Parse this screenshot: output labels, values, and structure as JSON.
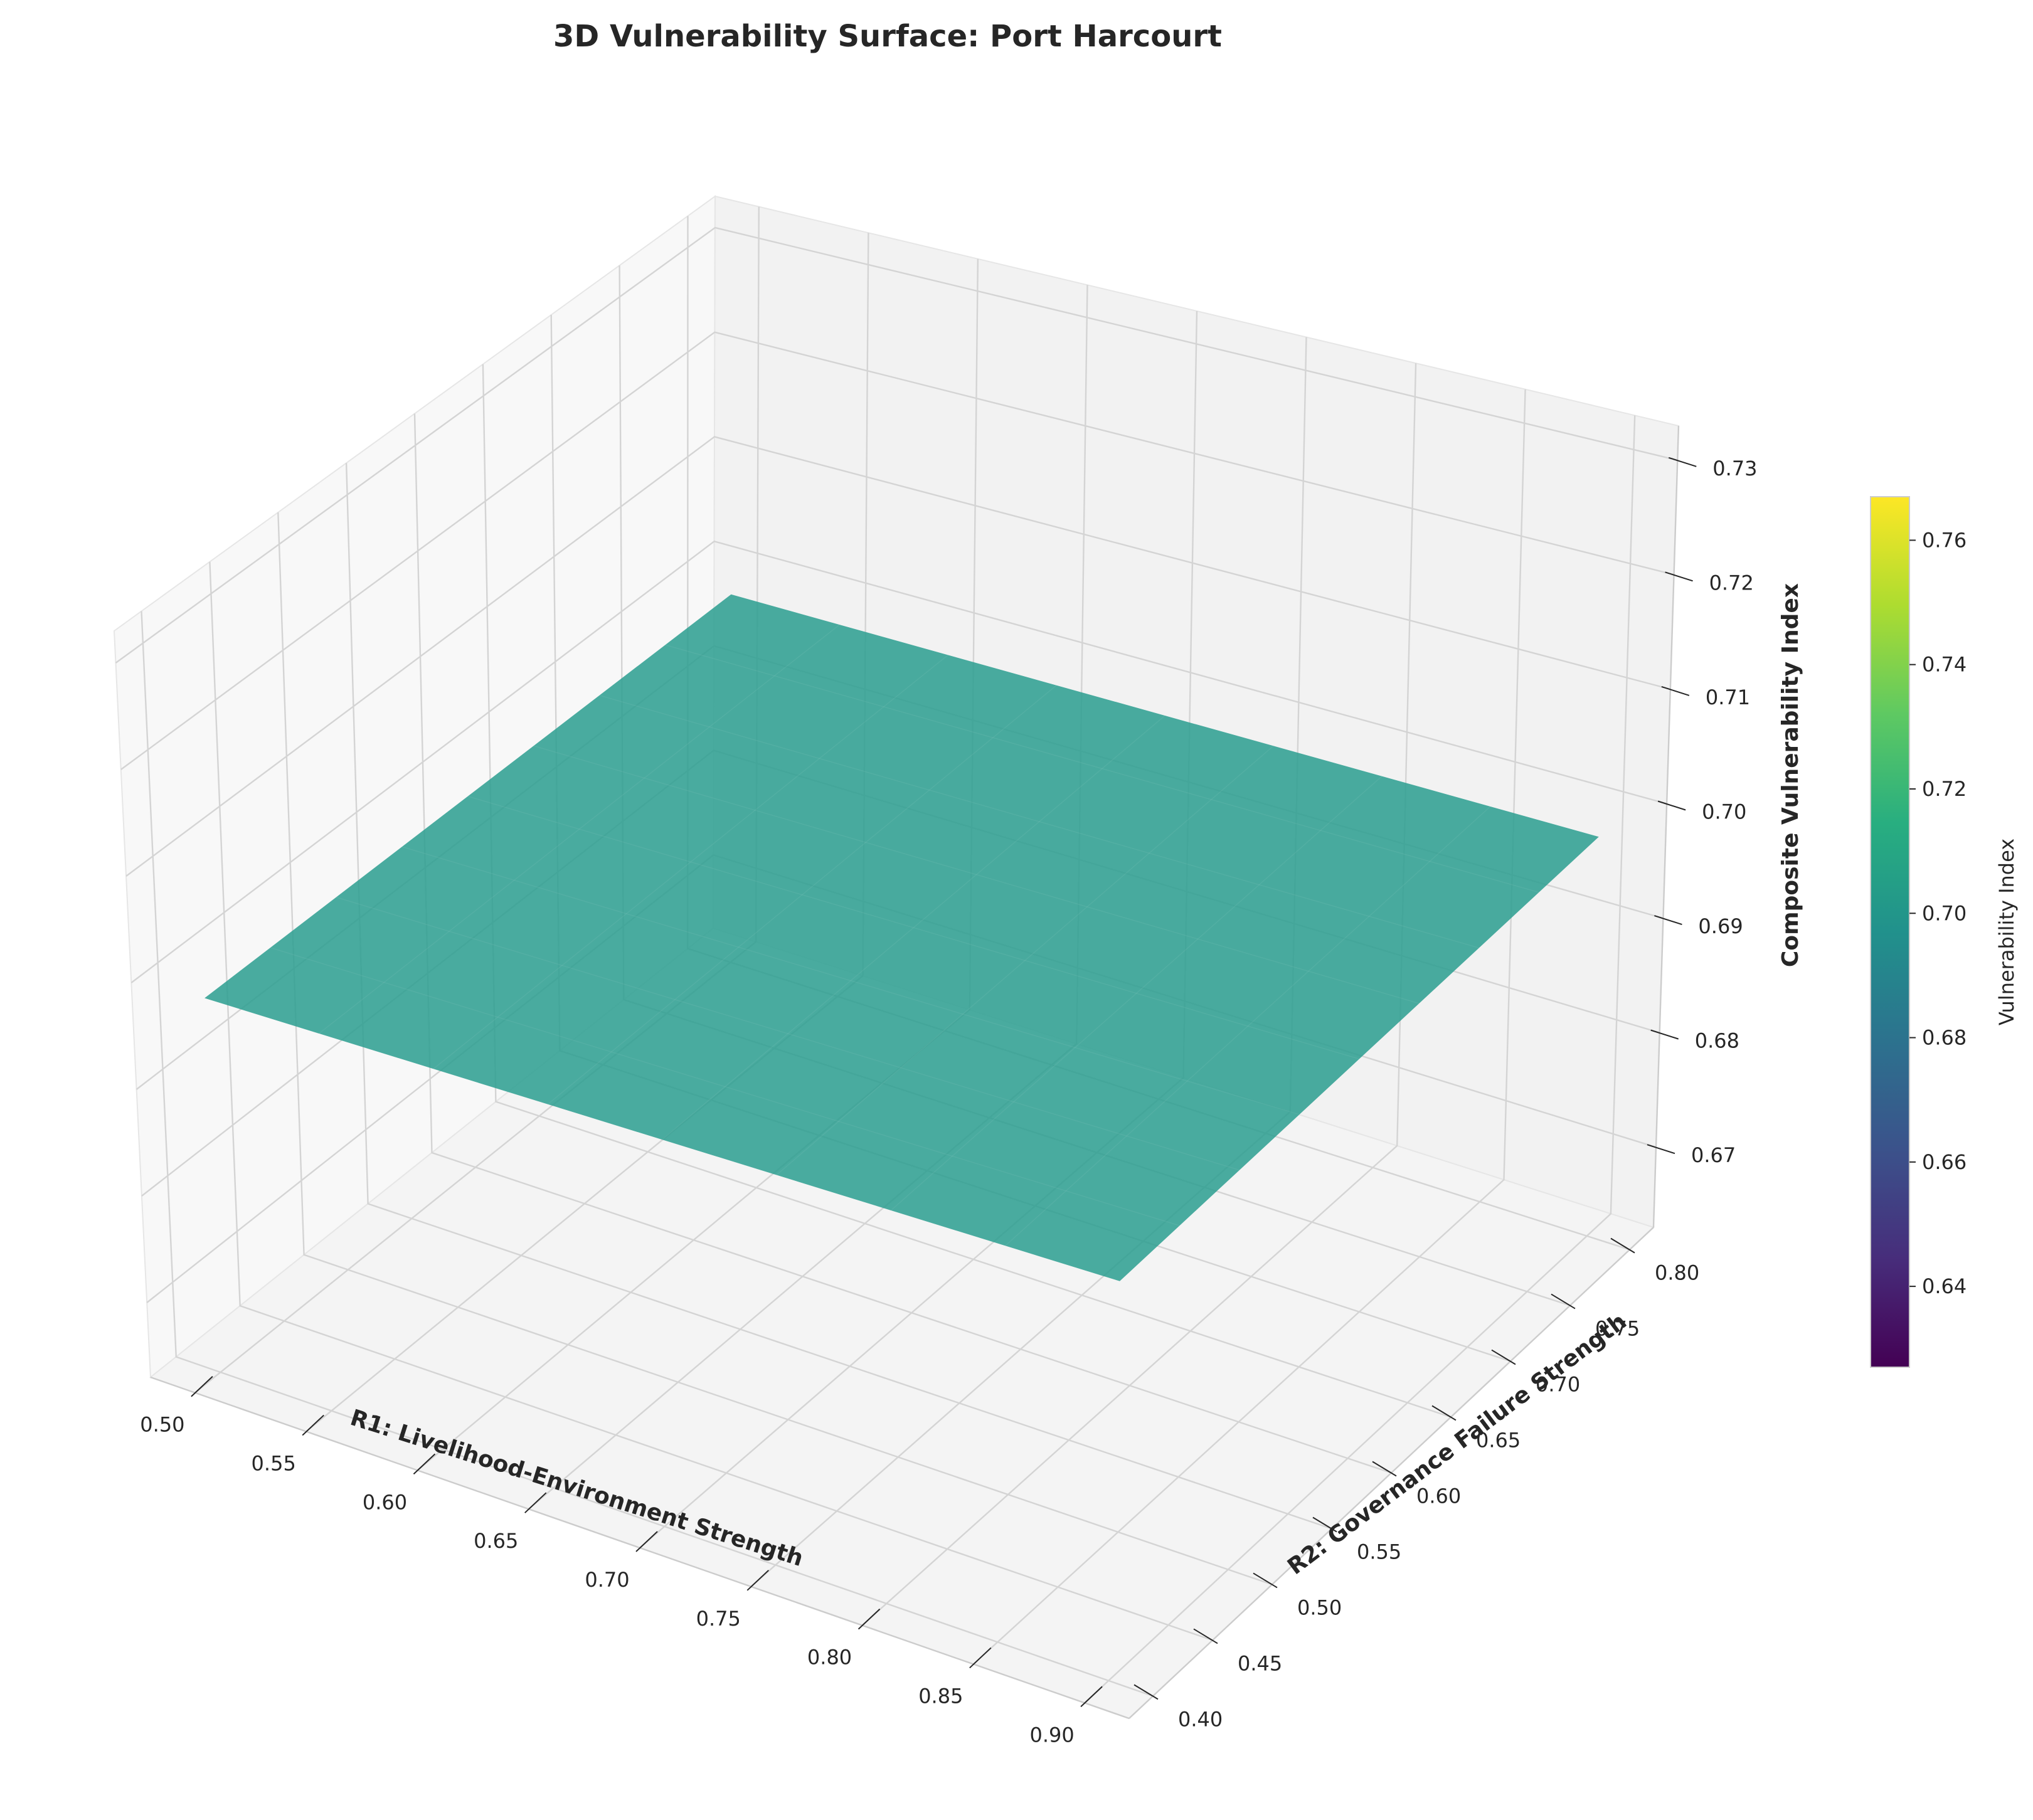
{
  "chart_data": {
    "type": "surface3d",
    "title": "3D Vulnerability Surface: Port Harcourt",
    "xlabel": "R1: Livelihood-Environment Strength",
    "ylabel": "R2: Governance Failure Strength",
    "zlabel": "Composite Vulnerability Index",
    "xlim": [
      0.48,
      0.92
    ],
    "ylim": [
      0.38,
      0.82
    ],
    "zlim": [
      0.663,
      0.733
    ],
    "x_ticks": [
      "0.50",
      "0.55",
      "0.60",
      "0.65",
      "0.70",
      "0.75",
      "0.80",
      "0.85",
      "0.90"
    ],
    "y_ticks": [
      "0.40",
      "0.45",
      "0.50",
      "0.55",
      "0.60",
      "0.65",
      "0.70",
      "0.75",
      "0.80"
    ],
    "z_ticks": [
      "0.67",
      "0.68",
      "0.69",
      "0.70",
      "0.71",
      "0.72",
      "0.73"
    ],
    "surface": {
      "x": [
        0.5,
        0.9
      ],
      "y": [
        0.4,
        0.8
      ],
      "z": 0.698,
      "color": "#2a9d8f"
    },
    "colorbar": {
      "label": "Vulnerability Index",
      "colormap": "viridis",
      "range": [
        0.627,
        0.767
      ],
      "ticks": [
        "0.64",
        "0.66",
        "0.68",
        "0.70",
        "0.72",
        "0.74",
        "0.76"
      ]
    },
    "grid": true
  }
}
